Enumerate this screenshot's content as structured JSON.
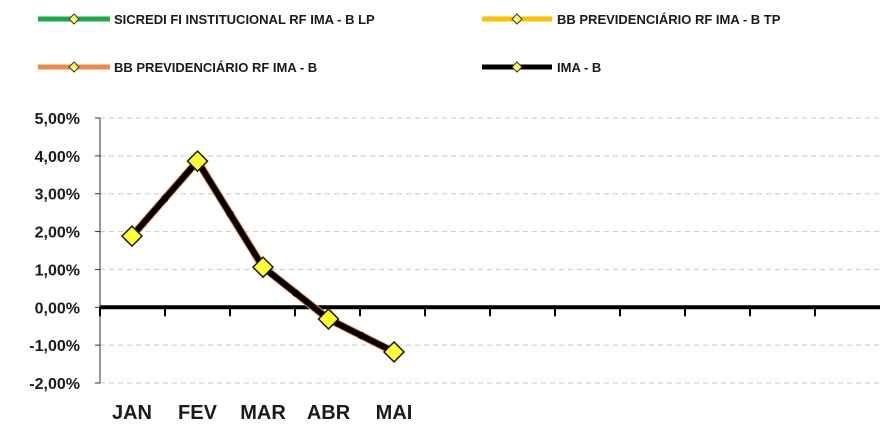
{
  "chart_data": {
    "type": "line",
    "categories": [
      "JAN",
      "FEV",
      "MAR",
      "ABR",
      "MAI"
    ],
    "ylim": [
      -2,
      5
    ],
    "y_ticks": [
      "5,00%",
      "4,00%",
      "3,00%",
      "2,00%",
      "1,00%",
      "0,00%",
      "-1,00%",
      "-2,00%"
    ],
    "grid": true,
    "legend_position": "top",
    "series": [
      {
        "name": "SICREDI FI INSTITUCIONAL RF IMA - B LP",
        "color": "#1faa4a",
        "values": [
          1.88,
          3.86,
          1.06,
          -0.31,
          -1.18
        ]
      },
      {
        "name": "BB PREVIDENCIÁRIO RF IMA - B TP",
        "color": "#ffc000",
        "values": [
          1.88,
          3.86,
          1.06,
          -0.31,
          -1.18
        ]
      },
      {
        "name": "BB PREVIDENCIÁRIO RF IMA - B",
        "color": "#ee8b45",
        "values": [
          1.88,
          3.86,
          1.06,
          -0.31,
          -1.18
        ]
      },
      {
        "name": "IMA - B",
        "color": "#000000",
        "values": [
          1.88,
          3.86,
          1.06,
          -0.31,
          -1.18
        ]
      }
    ]
  }
}
